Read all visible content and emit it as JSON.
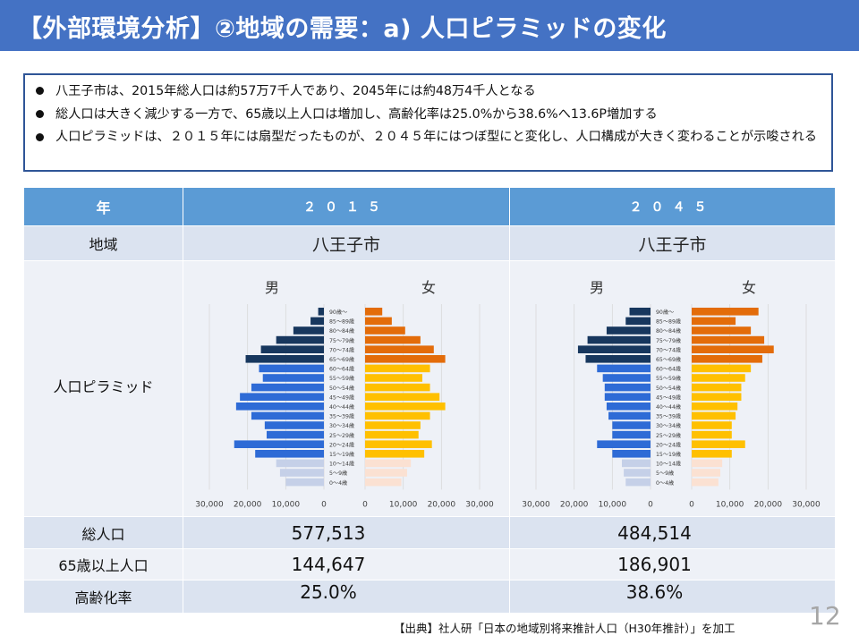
{
  "header": {
    "title": "【外部環境分析】②地域の需要：a) 人口ピラミッドの変化"
  },
  "bullets": [
    "八王子市は、2015年総人口は約57万7千人であり、2045年には約48万4千人となる",
    "総人口は大きく減少する一方で、65歳以上人口は増加し、高齢化率は25.0%から38.6%へ13.6P増加する",
    "人口ピラミッドは、２０１５年には扇型だったものが、２０４５年にはつぼ型にと変化し、人口構成が大きく変わることが示唆される"
  ],
  "table": {
    "header_label": "年",
    "years": [
      "２０１５",
      "２０４５"
    ],
    "region_label": "地域",
    "regions": [
      "八王子市",
      "八王子市"
    ],
    "pyramid_label": "人口ピラミッド",
    "male_label": "男",
    "female_label": "女",
    "total_label": "総人口",
    "totals": [
      "577,513",
      "484,514"
    ],
    "elderly_label": "65歳以上人口",
    "elderly": [
      "144,647",
      "186,901"
    ],
    "aging_label": "高齢化率",
    "aging": [
      "25.0%",
      "38.6%"
    ]
  },
  "chart_data": [
    {
      "type": "bar",
      "orientation": "horizontal-pyramid",
      "year": "2015",
      "categories": [
        "0～4歳",
        "5～9歳",
        "10～14歳",
        "15～19歳",
        "20～24歳",
        "25～29歳",
        "30～34歳",
        "35～39歳",
        "40～44歳",
        "45～49歳",
        "50～54歳",
        "55～59歳",
        "60～64歳",
        "65～69歳",
        "70～74歳",
        "75～79歳",
        "80～84歳",
        "85～89歳",
        "90歳～"
      ],
      "series": [
        {
          "name": "男",
          "values": [
            10000,
            11500,
            12500,
            18000,
            23500,
            15000,
            15500,
            19000,
            23000,
            22000,
            19000,
            16000,
            17000,
            20500,
            16500,
            12500,
            8000,
            3500,
            1500
          ]
        },
        {
          "name": "女",
          "values": [
            9500,
            11000,
            12000,
            15500,
            17500,
            14000,
            14500,
            17000,
            21000,
            19500,
            17000,
            15000,
            17000,
            21000,
            18000,
            14500,
            10500,
            7000,
            4500
          ]
        }
      ],
      "male_colors": [
        "#c5d0e8",
        "#c5d0e8",
        "#c5d0e8",
        "#2e6bd6",
        "#2e6bd6",
        "#2e6bd6",
        "#2e6bd6",
        "#2e6bd6",
        "#2e6bd6",
        "#2e6bd6",
        "#2e6bd6",
        "#2e6bd6",
        "#2e6bd6",
        "#17375e",
        "#17375e",
        "#17375e",
        "#17375e",
        "#17375e",
        "#17375e"
      ],
      "female_colors": [
        "#fbe1d2",
        "#fbe1d2",
        "#fbe1d2",
        "#ffc000",
        "#ffc000",
        "#ffc000",
        "#ffc000",
        "#ffc000",
        "#ffc000",
        "#ffc000",
        "#ffc000",
        "#ffc000",
        "#ffc000",
        "#e36c0a",
        "#e36c0a",
        "#e36c0a",
        "#e36c0a",
        "#e36c0a",
        "#e36c0a"
      ],
      "x_ticks_left": [
        "30,000",
        "20,000",
        "10,000",
        "0"
      ],
      "x_ticks_right": [
        "0",
        "10,000",
        "20,000",
        "30,000"
      ],
      "xlim": [
        0,
        30000
      ]
    },
    {
      "type": "bar",
      "orientation": "horizontal-pyramid",
      "year": "2045",
      "categories": [
        "0～4歳",
        "5～9歳",
        "10～14歳",
        "15～19歳",
        "20～24歳",
        "25～29歳",
        "30～34歳",
        "35～39歳",
        "40～44歳",
        "45～49歳",
        "50～54歳",
        "55～59歳",
        "60～64歳",
        "65～69歳",
        "70～74歳",
        "75～79歳",
        "80～84歳",
        "85～89歳",
        "90歳～"
      ],
      "series": [
        {
          "name": "男",
          "values": [
            6500,
            7000,
            7500,
            10000,
            14000,
            10000,
            10000,
            11000,
            11500,
            12000,
            12000,
            12500,
            14000,
            17000,
            19000,
            16500,
            11500,
            6500,
            5500
          ]
        },
        {
          "name": "女",
          "values": [
            7000,
            7500,
            8000,
            10500,
            14000,
            10500,
            10500,
            11500,
            12000,
            13000,
            13000,
            14000,
            15500,
            18500,
            21500,
            19000,
            15500,
            11500,
            17500
          ]
        }
      ],
      "male_colors": [
        "#c5d0e8",
        "#c5d0e8",
        "#c5d0e8",
        "#2e6bd6",
        "#2e6bd6",
        "#2e6bd6",
        "#2e6bd6",
        "#2e6bd6",
        "#2e6bd6",
        "#2e6bd6",
        "#2e6bd6",
        "#2e6bd6",
        "#2e6bd6",
        "#17375e",
        "#17375e",
        "#17375e",
        "#17375e",
        "#17375e",
        "#17375e"
      ],
      "female_colors": [
        "#fbe1d2",
        "#fbe1d2",
        "#fbe1d2",
        "#ffc000",
        "#ffc000",
        "#ffc000",
        "#ffc000",
        "#ffc000",
        "#ffc000",
        "#ffc000",
        "#ffc000",
        "#ffc000",
        "#ffc000",
        "#e36c0a",
        "#e36c0a",
        "#e36c0a",
        "#e36c0a",
        "#e36c0a",
        "#e36c0a"
      ],
      "x_ticks_left": [
        "30,000",
        "20,000",
        "10,000",
        "0"
      ],
      "x_ticks_right": [
        "0",
        "10,000",
        "20,000",
        "30,000"
      ],
      "xlim": [
        0,
        30000
      ]
    }
  ],
  "footer": {
    "source": "【出典】社人研「日本の地域別将来推計人口（H30年推計）」を加工",
    "page_number": "12"
  }
}
